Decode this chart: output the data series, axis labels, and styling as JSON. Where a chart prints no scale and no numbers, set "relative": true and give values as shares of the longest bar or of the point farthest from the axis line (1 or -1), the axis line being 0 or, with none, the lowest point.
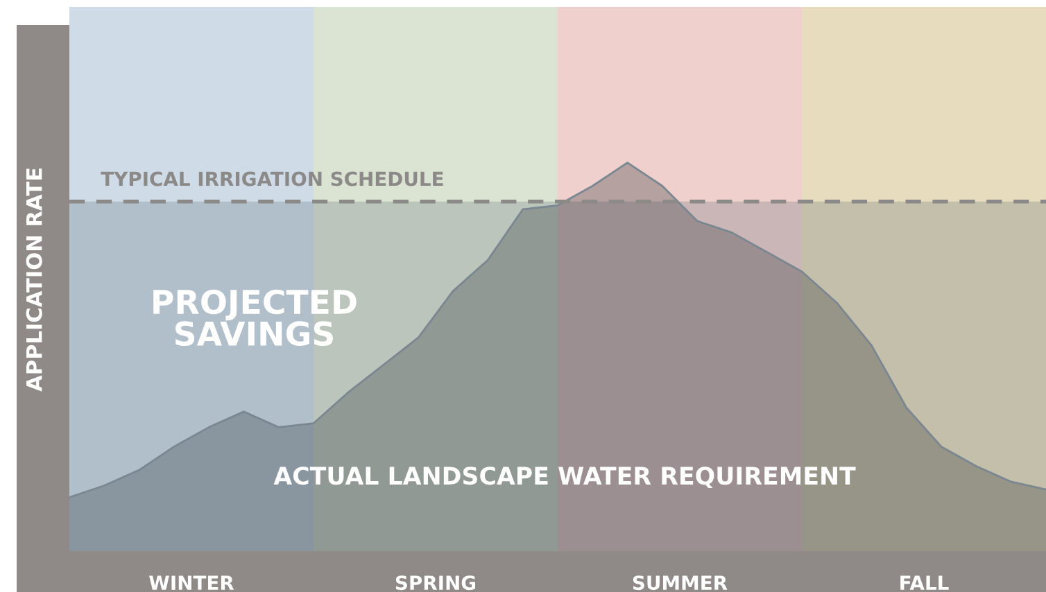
{
  "chart_data": {
    "type": "area",
    "relative": true,
    "ylabel": "APPLICATION RATE",
    "categories": [
      null,
      null,
      null,
      null,
      null,
      null,
      null,
      null,
      null,
      null,
      null,
      null,
      null,
      null,
      null,
      null,
      null,
      null,
      null,
      null,
      null,
      null,
      null,
      null,
      null,
      null,
      null,
      null,
      null
    ],
    "series": [
      {
        "name": "ACTUAL LANDSCAPE WATER REQUIREMENT",
        "color": "#7b8790",
        "values": [
          0.14,
          0.17,
          0.21,
          0.27,
          0.32,
          0.36,
          0.32,
          0.33,
          0.41,
          0.48,
          0.55,
          0.67,
          0.75,
          0.88,
          0.89,
          0.94,
          1.0,
          0.94,
          0.85,
          0.82,
          0.77,
          0.72,
          0.64,
          0.53,
          0.37,
          0.27,
          0.22,
          0.18,
          0.16
        ]
      }
    ],
    "ref_lines": [
      {
        "axis": "y",
        "value": 0.9,
        "label": "TYPICAL IRRIGATION SCHEDULE",
        "color": "#8c8a88",
        "line_style": "dashed"
      }
    ],
    "bands": [
      {
        "axis": "y",
        "from": 0,
        "to": 0.9,
        "label": "PROJECTED\nSAVINGS",
        "color": "#4a5a6a"
      }
    ],
    "annotations": [
      "WINTER",
      "SPRING",
      "SUMMER",
      "FALL"
    ]
  }
}
